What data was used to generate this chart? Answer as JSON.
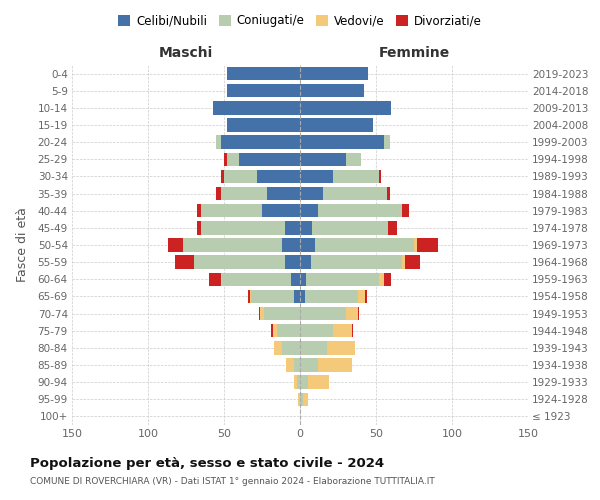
{
  "age_groups": [
    "100+",
    "95-99",
    "90-94",
    "85-89",
    "80-84",
    "75-79",
    "70-74",
    "65-69",
    "60-64",
    "55-59",
    "50-54",
    "45-49",
    "40-44",
    "35-39",
    "30-34",
    "25-29",
    "20-24",
    "15-19",
    "10-14",
    "5-9",
    "0-4"
  ],
  "birth_years": [
    "≤ 1923",
    "1924-1928",
    "1929-1933",
    "1934-1938",
    "1939-1943",
    "1944-1948",
    "1949-1953",
    "1954-1958",
    "1959-1963",
    "1964-1968",
    "1969-1973",
    "1974-1978",
    "1979-1983",
    "1984-1988",
    "1989-1993",
    "1994-1998",
    "1999-2003",
    "2004-2008",
    "2009-2013",
    "2014-2018",
    "2019-2023"
  ],
  "male_celibi": [
    0,
    0,
    0,
    0,
    0,
    0,
    0,
    4,
    6,
    10,
    12,
    10,
    25,
    22,
    28,
    40,
    52,
    48,
    57,
    48,
    48
  ],
  "male_coniugati": [
    0,
    0,
    2,
    4,
    12,
    15,
    24,
    28,
    45,
    60,
    65,
    55,
    40,
    30,
    22,
    8,
    3,
    0,
    0,
    0,
    0
  ],
  "male_vedovi": [
    0,
    1,
    2,
    5,
    5,
    3,
    2,
    1,
    1,
    0,
    0,
    0,
    0,
    0,
    0,
    0,
    0,
    0,
    0,
    0,
    0
  ],
  "male_divorziati": [
    0,
    0,
    0,
    0,
    0,
    1,
    1,
    1,
    8,
    12,
    10,
    3,
    3,
    3,
    2,
    2,
    0,
    0,
    0,
    0,
    0
  ],
  "female_nubili": [
    0,
    0,
    0,
    0,
    0,
    0,
    0,
    3,
    4,
    7,
    10,
    8,
    12,
    15,
    22,
    30,
    55,
    48,
    60,
    42,
    45
  ],
  "female_coniugate": [
    0,
    2,
    5,
    12,
    18,
    22,
    30,
    35,
    48,
    60,
    65,
    50,
    55,
    42,
    30,
    10,
    4,
    0,
    0,
    0,
    0
  ],
  "female_vedove": [
    0,
    3,
    14,
    22,
    18,
    12,
    8,
    5,
    3,
    2,
    2,
    0,
    0,
    0,
    0,
    0,
    0,
    0,
    0,
    0,
    0
  ],
  "female_divorziate": [
    0,
    0,
    0,
    0,
    0,
    1,
    1,
    1,
    5,
    10,
    14,
    6,
    5,
    2,
    1,
    0,
    0,
    0,
    0,
    0,
    0
  ],
  "color_celibi": "#4472A8",
  "color_coniugati": "#B8CCB0",
  "color_vedovi": "#F5C97A",
  "color_divorziati": "#CC2222",
  "xlim": 150,
  "title": "Popolazione per età, sesso e stato civile - 2024",
  "subtitle": "COMUNE DI ROVERCHIARA (VR) - Dati ISTAT 1° gennaio 2024 - Elaborazione TUTTITALIA.IT",
  "ylabel_left": "Fasce di età",
  "label_maschi": "Maschi",
  "label_femmine": "Femmine",
  "legend_labels": [
    "Celibi/Nubili",
    "Coniugati/e",
    "Vedovi/e",
    "Divorziati/e"
  ],
  "background_color": "#ffffff",
  "grid_color": "#cccccc"
}
